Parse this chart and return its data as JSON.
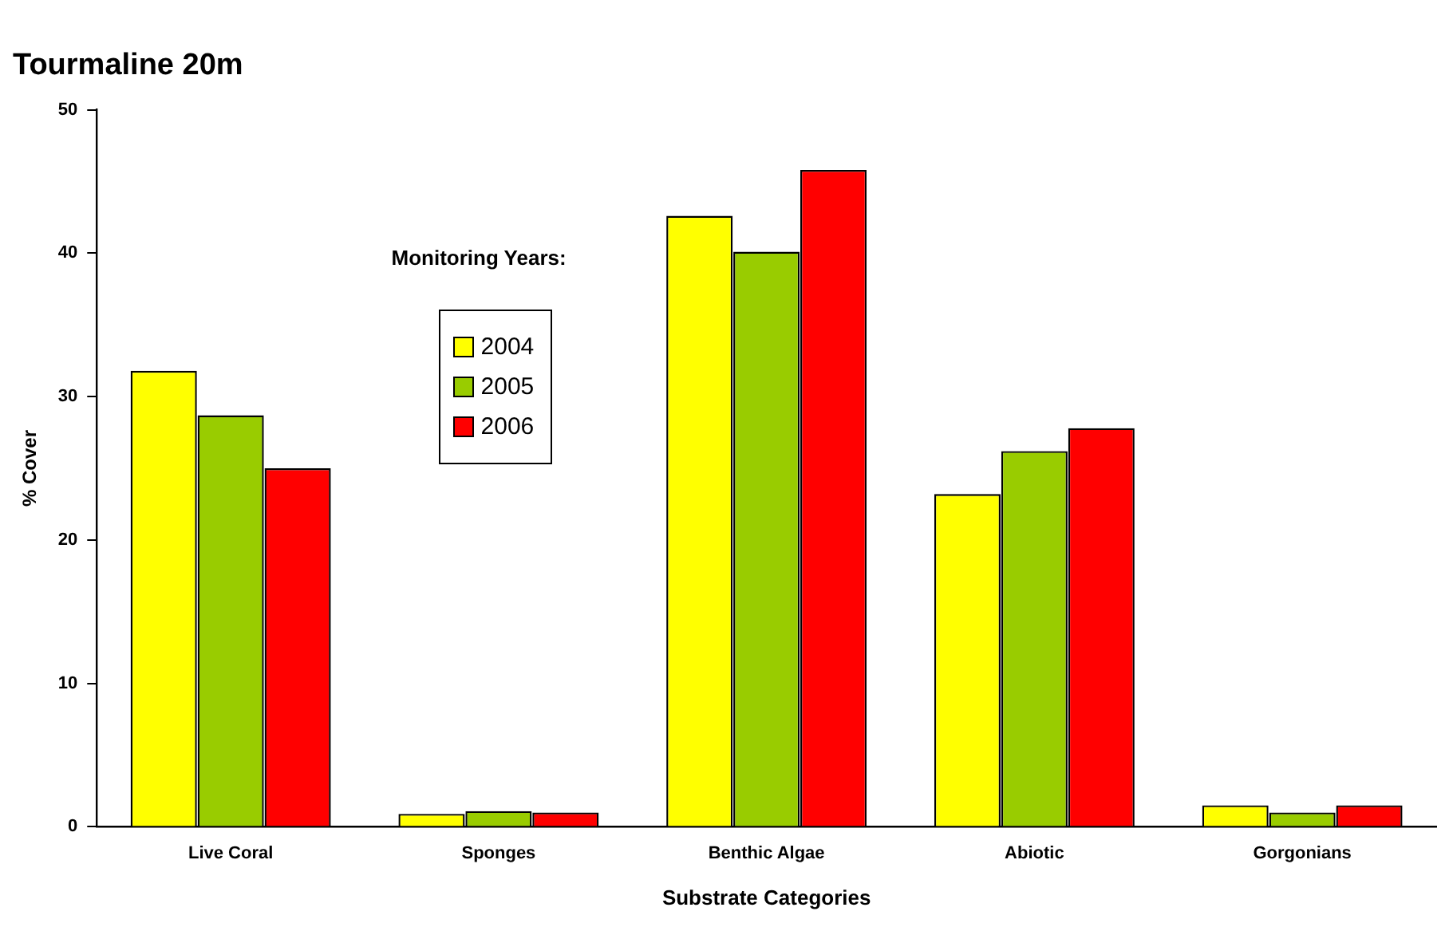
{
  "chart_data": {
    "type": "bar",
    "title": "Tourmaline 20m",
    "xlabel": "Substrate Categories",
    "ylabel": "% Cover",
    "legend_title": "Monitoring Years:",
    "categories": [
      "Live Coral",
      "Sponges",
      "Benthic Algae",
      "Abiotic",
      "Gorgonians"
    ],
    "series": [
      {
        "name": "2004",
        "color": "#ffff00",
        "values": [
          31.8,
          0.9,
          42.6,
          23.2,
          1.5
        ]
      },
      {
        "name": "2005",
        "color": "#99cc00",
        "values": [
          28.7,
          1.1,
          40.1,
          26.2,
          1.0
        ]
      },
      {
        "name": "2006",
        "color": "#ff0000",
        "values": [
          25.0,
          1.0,
          45.8,
          27.8,
          1.5
        ]
      }
    ],
    "ylim": [
      0,
      50
    ],
    "yticks": [
      0,
      10,
      20,
      30,
      40,
      50
    ],
    "grid": false,
    "legend": "top left"
  }
}
